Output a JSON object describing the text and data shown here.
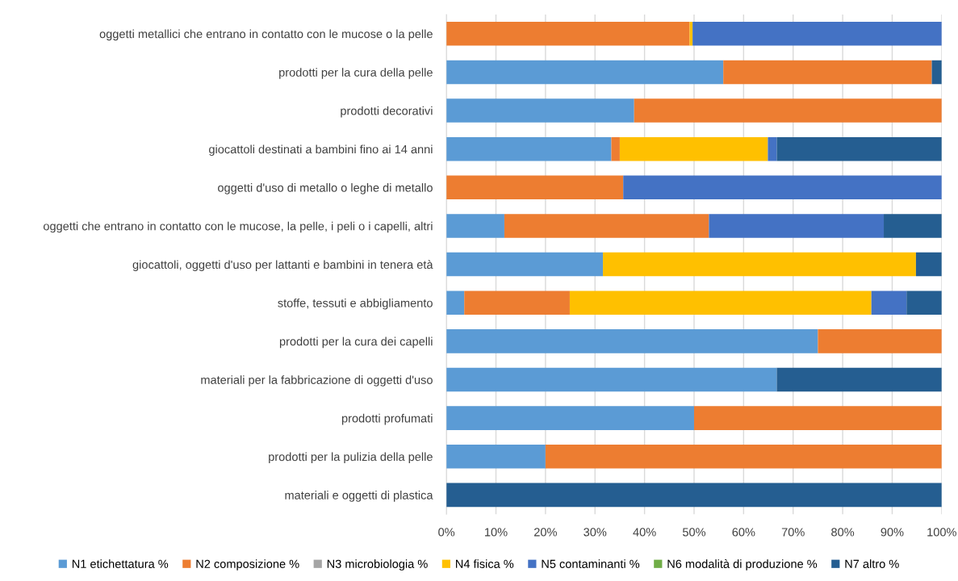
{
  "chart_data": {
    "type": "bar",
    "orientation": "horizontal",
    "stacked": true,
    "categories": [
      "oggetti metallici che entrano in contatto con le mucose o la pelle",
      "prodotti per la cura della pelle",
      "prodotti decorativi",
      "giocattoli destinati a bambini fino ai 14 anni",
      "oggetti d'uso di metallo o leghe di metallo",
      "oggetti che entrano in contatto con le mucose, la pelle, i peli o i capelli, altri",
      "giocattoli, oggetti d'uso per lattanti e bambini in tenera età",
      "stoffe, tessuti e abbigliamento",
      "prodotti per la cura dei capelli",
      "materiali per la fabbricazione di oggetti d'uso",
      "prodotti profumati",
      "prodotti per la pulizia della pelle",
      "materiali e oggetti di plastica"
    ],
    "series": [
      {
        "name": "N1 etichettatura %",
        "color": "#5b9bd5",
        "values": [
          0,
          55.9,
          37.9,
          33.3,
          0,
          11.7,
          31.6,
          3.6,
          75,
          66.7,
          50,
          20,
          0
        ]
      },
      {
        "name": "N2 composizione %",
        "color": "#ed7d31",
        "values": [
          49.1,
          42.1,
          62.1,
          1.7,
          35.7,
          41.3,
          0,
          21.3,
          25,
          0,
          50,
          80,
          0
        ]
      },
      {
        "name": "N3 microbiologia %",
        "color": "#a5a5a5",
        "values": [
          0,
          0,
          0,
          0,
          0,
          0,
          0,
          0,
          0,
          0,
          0,
          0,
          0
        ]
      },
      {
        "name": "N4 fisica %",
        "color": "#ffc000",
        "values": [
          0.6,
          0,
          0,
          29.9,
          0,
          0,
          63.2,
          60.9,
          0,
          0,
          0,
          0,
          0
        ]
      },
      {
        "name": "N5 contaminanti %",
        "color": "#4472c4",
        "values": [
          50.3,
          0,
          0,
          1.8,
          64.3,
          35.3,
          0,
          7.1,
          0,
          0,
          0,
          0,
          0
        ]
      },
      {
        "name": "N6 modalità di produzione %",
        "color": "#70ad47",
        "values": [
          0,
          0,
          0,
          0,
          0,
          0,
          0,
          0,
          0,
          0,
          0,
          0,
          0
        ]
      },
      {
        "name": "N7 altro %",
        "color": "#255e91",
        "values": [
          0,
          2.0,
          0,
          33.3,
          0,
          11.7,
          5.2,
          7.1,
          0,
          33.3,
          0,
          0,
          100
        ]
      }
    ],
    "xlim": [
      0,
      100
    ],
    "xticks": [
      {
        "value": 0,
        "label": "0%"
      },
      {
        "value": 10,
        "label": "10%"
      },
      {
        "value": 20,
        "label": "20%"
      },
      {
        "value": 30,
        "label": "30%"
      },
      {
        "value": 40,
        "label": "40%"
      },
      {
        "value": 50,
        "label": "50%"
      },
      {
        "value": 60,
        "label": "60%"
      },
      {
        "value": 70,
        "label": "70%"
      },
      {
        "value": 80,
        "label": "80%"
      },
      {
        "value": 90,
        "label": "90%"
      },
      {
        "value": 100,
        "label": "100%"
      }
    ],
    "grid": "x",
    "legend": "bottom"
  }
}
